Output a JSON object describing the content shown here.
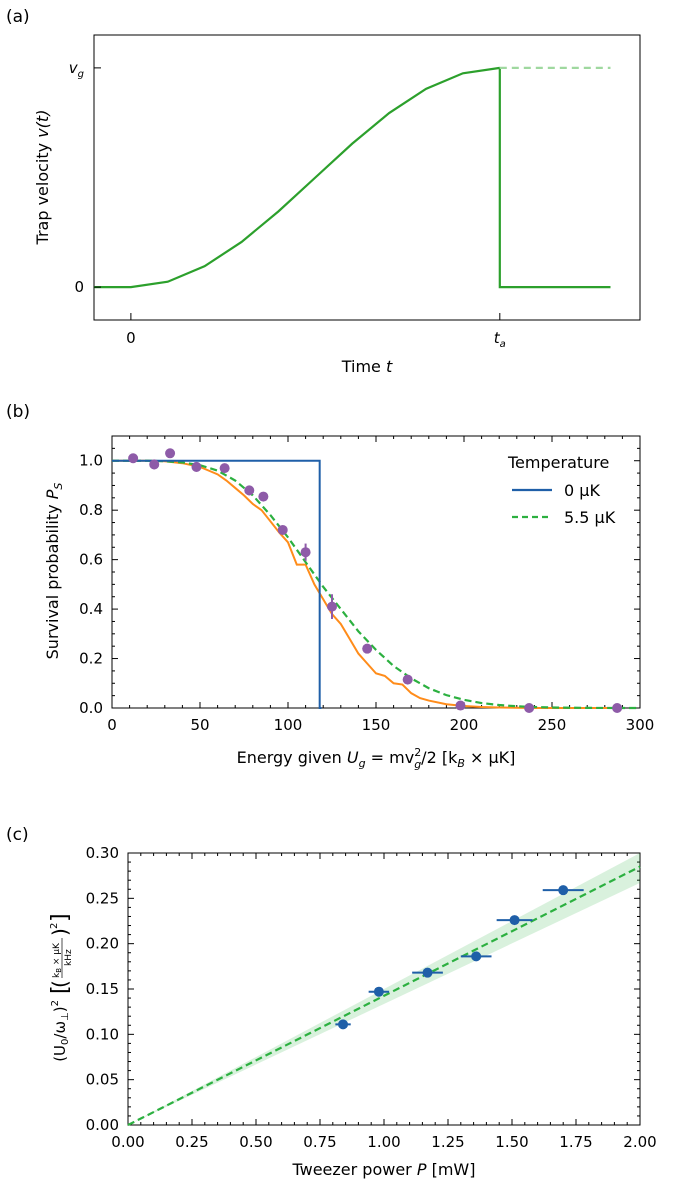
{
  "chart_data": [
    {
      "panel_label": "(a)",
      "type": "line",
      "xlabel_text": "Time ",
      "xlabel_var": "t",
      "ylabel_text": "Trap velocity ",
      "ylabel_var": "v(t)",
      "xticks": [
        {
          "value": 0,
          "text": "0"
        },
        {
          "value": 1,
          "text": "t",
          "sub": "a"
        }
      ],
      "yticks": [
        {
          "value": 0,
          "text": "0"
        },
        {
          "value": 1,
          "text": "v",
          "sub": "g"
        }
      ],
      "xlim": [
        -0.1,
        1.38
      ],
      "ylim": [
        -0.15,
        1.15
      ],
      "series": [
        {
          "kind": "ramp",
          "x": [
            -0.1,
            0,
            0.1,
            0.2,
            0.3,
            0.4,
            0.5,
            0.6,
            0.7,
            0.8,
            0.9,
            1.0
          ],
          "y": [
            0,
            0,
            0.0245,
            0.0955,
            0.2061,
            0.3455,
            0.5,
            0.6545,
            0.7939,
            0.9045,
            0.9755,
            1.0
          ],
          "color": "#2ca02c"
        },
        {
          "kind": "drop",
          "x": [
            1.0,
            1.0,
            1.3
          ],
          "y": [
            1.0,
            0,
            0
          ],
          "color": "#2ca02c"
        },
        {
          "kind": "dashed-continuation",
          "x": [
            1.0,
            1.3
          ],
          "y": [
            1.0,
            1.0
          ],
          "color": "#9fd89f"
        }
      ]
    },
    {
      "panel_label": "(b)",
      "type": "line",
      "xlabel_text": "Energy given ",
      "xlabel_var": "U",
      "xlabel_rest": " = mv",
      "xlabel_units": "/2 [k",
      "xlabel_units2": " × μK]",
      "ylabel_text": "Survival probability ",
      "ylabel_var": "P",
      "ylabel_sub": "S",
      "xlim": [
        0,
        300
      ],
      "ylim": [
        0,
        1.1
      ],
      "xticks": [
        0,
        50,
        100,
        150,
        200,
        250,
        300
      ],
      "xtick_labels": [
        "0",
        "50",
        "100",
        "150",
        "200",
        "250",
        "300"
      ],
      "yticks": [
        0,
        0.2,
        0.4,
        0.6,
        0.8,
        1.0
      ],
      "ytick_labels": [
        "0.0",
        "0.2",
        "0.4",
        "0.6",
        "0.8",
        "1.0"
      ],
      "legend": {
        "title": "Temperature",
        "entries": [
          "0 μK",
          "5.5 μK"
        ],
        "placement": "top-right"
      },
      "step_0uK": {
        "x": [
          0,
          118,
          118,
          119
        ],
        "y": [
          1,
          1,
          0,
          0
        ],
        "color": "#1f5fa8"
      },
      "fit_5_5uK": {
        "x": [
          0,
          10,
          20,
          30,
          40,
          50,
          60,
          70,
          80,
          90,
          100,
          110,
          120,
          130,
          140,
          150,
          160,
          170,
          180,
          190,
          200,
          210,
          220,
          230,
          240,
          250,
          260,
          270,
          280,
          290,
          300
        ],
        "y": [
          1.0,
          1.0,
          1.0,
          0.998,
          0.993,
          0.982,
          0.96,
          0.92,
          0.86,
          0.78,
          0.69,
          0.59,
          0.49,
          0.4,
          0.31,
          0.235,
          0.17,
          0.12,
          0.08,
          0.052,
          0.033,
          0.02,
          0.012,
          0.007,
          0.004,
          0.002,
          0.001,
          0.0005,
          0.0002,
          0.0001,
          0.0
        ],
        "color": "#2cb040"
      },
      "simulation": {
        "x": [
          0,
          10,
          20,
          30,
          40,
          50,
          55,
          60,
          65,
          70,
          75,
          80,
          85,
          90,
          95,
          100,
          105,
          110,
          115,
          120,
          125,
          130,
          135,
          140,
          145,
          150,
          155,
          160,
          165,
          170,
          175,
          180,
          190,
          200,
          210,
          220,
          240,
          260,
          290
        ],
        "y": [
          1.0,
          1.0,
          1.0,
          0.998,
          0.99,
          0.975,
          0.96,
          0.945,
          0.92,
          0.89,
          0.86,
          0.825,
          0.8,
          0.755,
          0.71,
          0.67,
          0.58,
          0.58,
          0.5,
          0.44,
          0.38,
          0.34,
          0.28,
          0.22,
          0.18,
          0.14,
          0.13,
          0.1,
          0.095,
          0.06,
          0.04,
          0.03,
          0.015,
          0.008,
          0.004,
          0.002,
          0.0,
          0.0,
          0.0
        ],
        "color": "#ff8c1a"
      },
      "measured": {
        "x": [
          12,
          24,
          33,
          48,
          64,
          78,
          86,
          97,
          110,
          125,
          145,
          168,
          198,
          237,
          287
        ],
        "y": [
          1.01,
          0.985,
          1.03,
          0.975,
          0.97,
          0.88,
          0.855,
          0.72,
          0.63,
          0.41,
          0.24,
          0.115,
          0.01,
          0.0,
          0.0
        ],
        "yerr": [
          0.005,
          0.02,
          0.01,
          0.02,
          0.01,
          0.02,
          0.01,
          0.01,
          0.035,
          0.05,
          0.01,
          0.01,
          0.005,
          0.003,
          0.003
        ],
        "color": "#8e5ba8"
      }
    },
    {
      "panel_label": "(c)",
      "type": "scatter",
      "xlabel_text": "Tweezer power ",
      "xlabel_var": "P",
      "xlabel_rest": " [mW]",
      "ylabel_text": "(U",
      "ylabel_rest": "/ω",
      "ylabel_units_top": "k",
      "ylabel_units_top2": " × μK",
      "ylabel_units_bottom": "kHz",
      "xlim": [
        0,
        2.0
      ],
      "ylim": [
        0,
        0.3
      ],
      "xticks": [
        0,
        0.25,
        0.5,
        0.75,
        1.0,
        1.25,
        1.5,
        1.75,
        2.0
      ],
      "xtick_labels": [
        "0.00",
        "0.25",
        "0.50",
        "0.75",
        "1.00",
        "1.25",
        "1.50",
        "1.75",
        "2.00"
      ],
      "yticks": [
        0,
        0.05,
        0.1,
        0.15,
        0.2,
        0.25,
        0.3
      ],
      "ytick_labels": [
        "0.00",
        "0.05",
        "0.10",
        "0.15",
        "0.20",
        "0.25",
        "0.30"
      ],
      "fit": {
        "slope": 0.1425,
        "band": 0.009,
        "color": "#2cb040"
      },
      "points": {
        "x": [
          0.84,
          0.98,
          1.17,
          1.36,
          1.51,
          1.7
        ],
        "y": [
          0.111,
          0.147,
          0.168,
          0.186,
          0.226,
          0.259
        ],
        "xerr": [
          0.03,
          0.04,
          0.06,
          0.06,
          0.07,
          0.08
        ],
        "color": "#1f5fa8"
      }
    }
  ]
}
